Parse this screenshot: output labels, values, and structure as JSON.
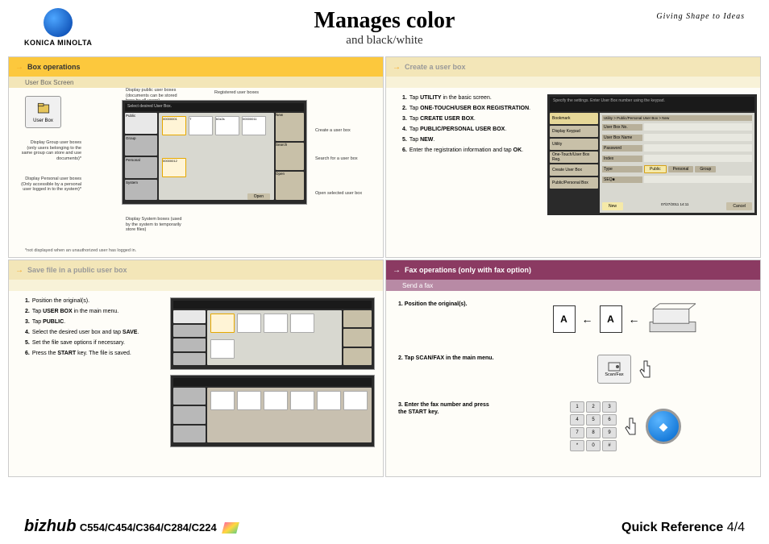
{
  "header": {
    "logo_text": "KONICA MINOLTA",
    "title": "Manages color",
    "subtitle": "and black/white",
    "tagline": "Giving Shape to Ideas"
  },
  "panels": {
    "box_ops": {
      "title": "Box operations",
      "subtitle": "User Box Screen",
      "userbox_label": "User Box",
      "callouts": {
        "public": "Display public user boxes (documents can be stored here by all users)",
        "registered": "Registered user boxes",
        "group": "Display Group user boxes (only users belonging to the same group can store and use documents)*",
        "personal": "Display Personal user boxes (Only accessible by a personal user logged in to the system)*",
        "system": "Display System boxes (used by the system to temporarily store files)",
        "create": "Create a user box",
        "search": "Search for a user box",
        "open": "Open selected user box"
      },
      "screen": {
        "title": "Select desired User Box.",
        "tabs": [
          "Public",
          "Group",
          "Personal",
          "System"
        ],
        "boxes": [
          "00000001",
          "T",
          "b0z2s",
          "00000011",
          "00000012"
        ],
        "side": [
          "New",
          "Search",
          "Open"
        ],
        "btn_open": "Open"
      },
      "footnote": "*not displayed when an unauthorized user has logged in."
    },
    "create_box": {
      "title": "Create a user box",
      "steps": [
        {
          "n": "1",
          "t": "Tap ",
          "b": "UTILITY",
          "a": " in the basic screen."
        },
        {
          "n": "2",
          "t": "Tap ",
          "b": "ONE-TOUCH/USER BOX REGISTRATION",
          "a": "."
        },
        {
          "n": "3",
          "t": "Tap ",
          "b": "CREATE USER BOX",
          "a": "."
        },
        {
          "n": "4",
          "t": "Tap ",
          "b": "PUBLIC/PERSONAL USER BOX",
          "a": "."
        },
        {
          "n": "5",
          "t": "Tap ",
          "b": "NEW",
          "a": "."
        },
        {
          "n": "6",
          "t": "Enter the registration information and tap ",
          "b": "OK",
          "a": "."
        }
      ],
      "screen": {
        "header": "Specify the settings.\nEnter User Box number using the keypad.",
        "crumb": "Utility > Public/Personal User Box > New",
        "left_btns": [
          "Bookmark",
          "Display Keypad",
          "Utility",
          "One-Touch/User Box Reg.",
          "Create User Box",
          "Public/Personal Box"
        ],
        "fields": [
          "User Box No.",
          "User Box Name",
          "Password",
          "Index",
          "Type",
          "SEQ■"
        ],
        "type_tabs": [
          "Public",
          "Personal",
          "Group"
        ],
        "new_btn": "New",
        "cancel": "Cancel",
        "date": "07/27/2011  14:11"
      }
    },
    "save_file": {
      "title": "Save file in a public user box",
      "steps": [
        {
          "n": "1",
          "t": "Position the original(s).",
          "b": "",
          "a": ""
        },
        {
          "n": "2",
          "t": "Tap ",
          "b": "USER BOX",
          "a": " in the main menu."
        },
        {
          "n": "3",
          "t": "Tap ",
          "b": "PUBLIC",
          "a": "."
        },
        {
          "n": "4",
          "t": "Select the desired user box and tap ",
          "b": "SAVE",
          "a": "."
        },
        {
          "n": "5",
          "t": "Set the file save options if necessary.",
          "b": "",
          "a": ""
        },
        {
          "n": "6",
          "t": "Press the ",
          "b": "START",
          "a": " key.\nThe file is saved."
        }
      ]
    },
    "fax_ops": {
      "title": "Fax operations (only with fax option)",
      "subtitle": "Send a fax",
      "steps": [
        {
          "n": "1",
          "t": "Position the original(s)."
        },
        {
          "n": "2",
          "t": "Tap ",
          "b": "SCAN/FAX",
          "a": " in the main menu."
        },
        {
          "n": "3",
          "t": "Enter the fax number and press the ",
          "b": "START",
          "a": " key."
        }
      ],
      "doc_letter": "A",
      "scanfax_label": "Scan/Fax",
      "keys": [
        "1",
        "2",
        "3",
        "4",
        "5",
        "6",
        "7",
        "8",
        "9",
        "*",
        "0",
        "#"
      ]
    }
  },
  "footer": {
    "brand": "bizhub",
    "models": "C554/C454/C364/C284/C224",
    "ref": "Quick Reference",
    "page": "4/4"
  },
  "colors": {
    "yellow_header": "#fcc83d",
    "purple_header": "#8b3a62",
    "accent": "#e6a800"
  }
}
